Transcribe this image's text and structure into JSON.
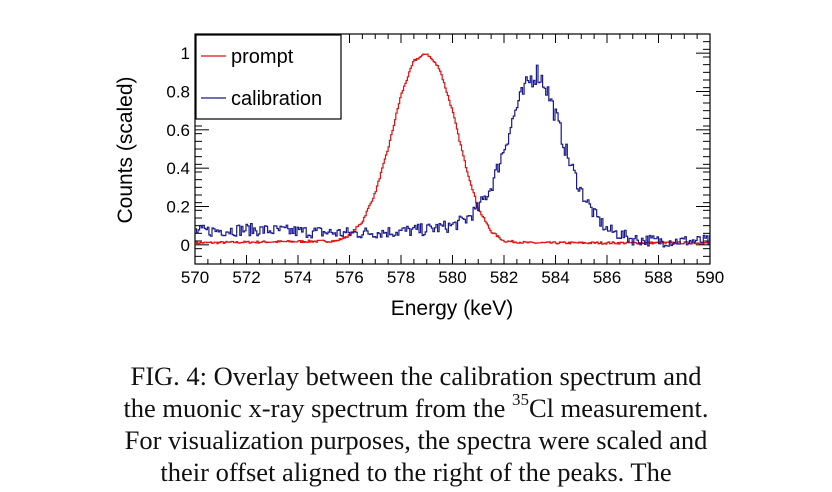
{
  "chart_data": {
    "type": "line",
    "title": "",
    "xlabel": "Energy (keV)",
    "ylabel": "Counts (scaled)",
    "xlim": [
      570,
      590
    ],
    "ylim": [
      -0.1,
      1.1
    ],
    "x_ticks": [
      "570",
      "572",
      "574",
      "576",
      "578",
      "580",
      "582",
      "584",
      "586",
      "588",
      "590"
    ],
    "y_ticks": [
      "0",
      "0.2",
      "0.4",
      "0.6",
      "0.8",
      "1"
    ],
    "legend_position": "top-left",
    "grid": false,
    "series": [
      {
        "name": "prompt",
        "color": "#e01010",
        "x": [
          570,
          575.5,
          576,
          576.5,
          577,
          577.5,
          578,
          578.5,
          579,
          579.5,
          580,
          580.5,
          581,
          581.5,
          582,
          583,
          590
        ],
        "y": [
          0.01,
          0.02,
          0.05,
          0.12,
          0.27,
          0.5,
          0.78,
          0.96,
          1.0,
          0.92,
          0.7,
          0.42,
          0.19,
          0.07,
          0.02,
          0.01,
          0.01
        ]
      },
      {
        "name": "calibration",
        "color": "#1a1a8c",
        "x": [
          570,
          572,
          574,
          576,
          578,
          579,
          580,
          580.5,
          581,
          581.5,
          582,
          582.5,
          583,
          583.3,
          583.6,
          584,
          584.5,
          585,
          585.5,
          586,
          587,
          588,
          590
        ],
        "y": [
          0.07,
          0.08,
          0.07,
          0.06,
          0.07,
          0.08,
          0.1,
          0.13,
          0.19,
          0.3,
          0.5,
          0.72,
          0.86,
          0.9,
          0.84,
          0.68,
          0.45,
          0.28,
          0.16,
          0.08,
          0.03,
          0.02,
          0.02
        ]
      }
    ]
  },
  "caption": {
    "line1": "FIG. 4: Overlay between the calibration spectrum and",
    "line2_before": "the muonic x-ray spectrum from the ",
    "line2_sup": "35",
    "line2_after": "Cl measurement.",
    "line3": "For visualization purposes, the spectra were scaled and",
    "line4": "their offset aligned to the right of the peaks. The"
  }
}
